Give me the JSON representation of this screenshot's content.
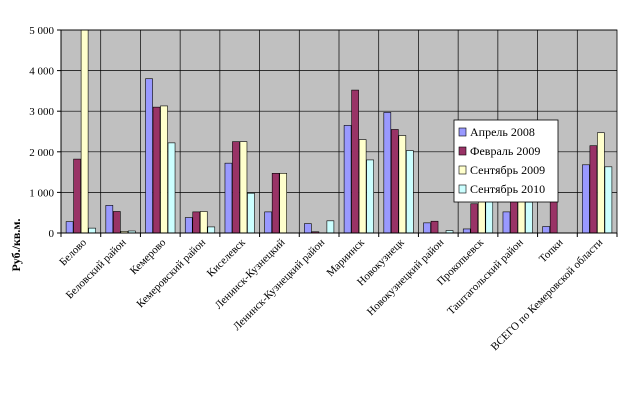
{
  "chart_data": {
    "type": "bar",
    "categories": [
      "Белово",
      "Беловский район",
      "Кемерово",
      "Кемеровский район",
      "Киселевск",
      "Ленинск-Кузнецкий",
      "Ленинск-Кузнецкий район",
      "Мариинск",
      "Новокузнецк",
      "Новокузнецкий район",
      "Прокопьевск",
      "Таштагольский район",
      "Топки",
      "ВСЕГО по Кемеровской области"
    ],
    "series": [
      {
        "name": "Апрель 2008",
        "color": "#9999FF",
        "values": [
          280,
          680,
          3800,
          380,
          1720,
          520,
          230,
          2650,
          2970,
          250,
          100,
          520,
          160,
          1680
        ]
      },
      {
        "name": "Февраль 2009",
        "color": "#993366",
        "values": [
          1820,
          530,
          3100,
          520,
          2250,
          1470,
          30,
          3520,
          2550,
          290,
          720,
          940,
          1700,
          2150
        ]
      },
      {
        "name": "Сентябрь 2009",
        "color": "#FFFFCC",
        "values": [
          5000,
          40,
          3130,
          530,
          2250,
          1470,
          0,
          2300,
          2400,
          0,
          970,
          800,
          0,
          2470
        ]
      },
      {
        "name": "Сентябрь 2010",
        "color": "#CCFFFF",
        "values": [
          120,
          50,
          2220,
          150,
          980,
          0,
          300,
          1800,
          2030,
          60,
          970,
          760,
          0,
          1630
        ]
      }
    ],
    "ylabel": "Руб./кв.м.",
    "ylim": [
      0,
      5000
    ],
    "yticks": [
      "0",
      "1 000",
      "2 000",
      "3 000",
      "4 000",
      "5 000"
    ],
    "grid": true,
    "legend_position": "right",
    "plot_background": "#C0C0C0"
  }
}
